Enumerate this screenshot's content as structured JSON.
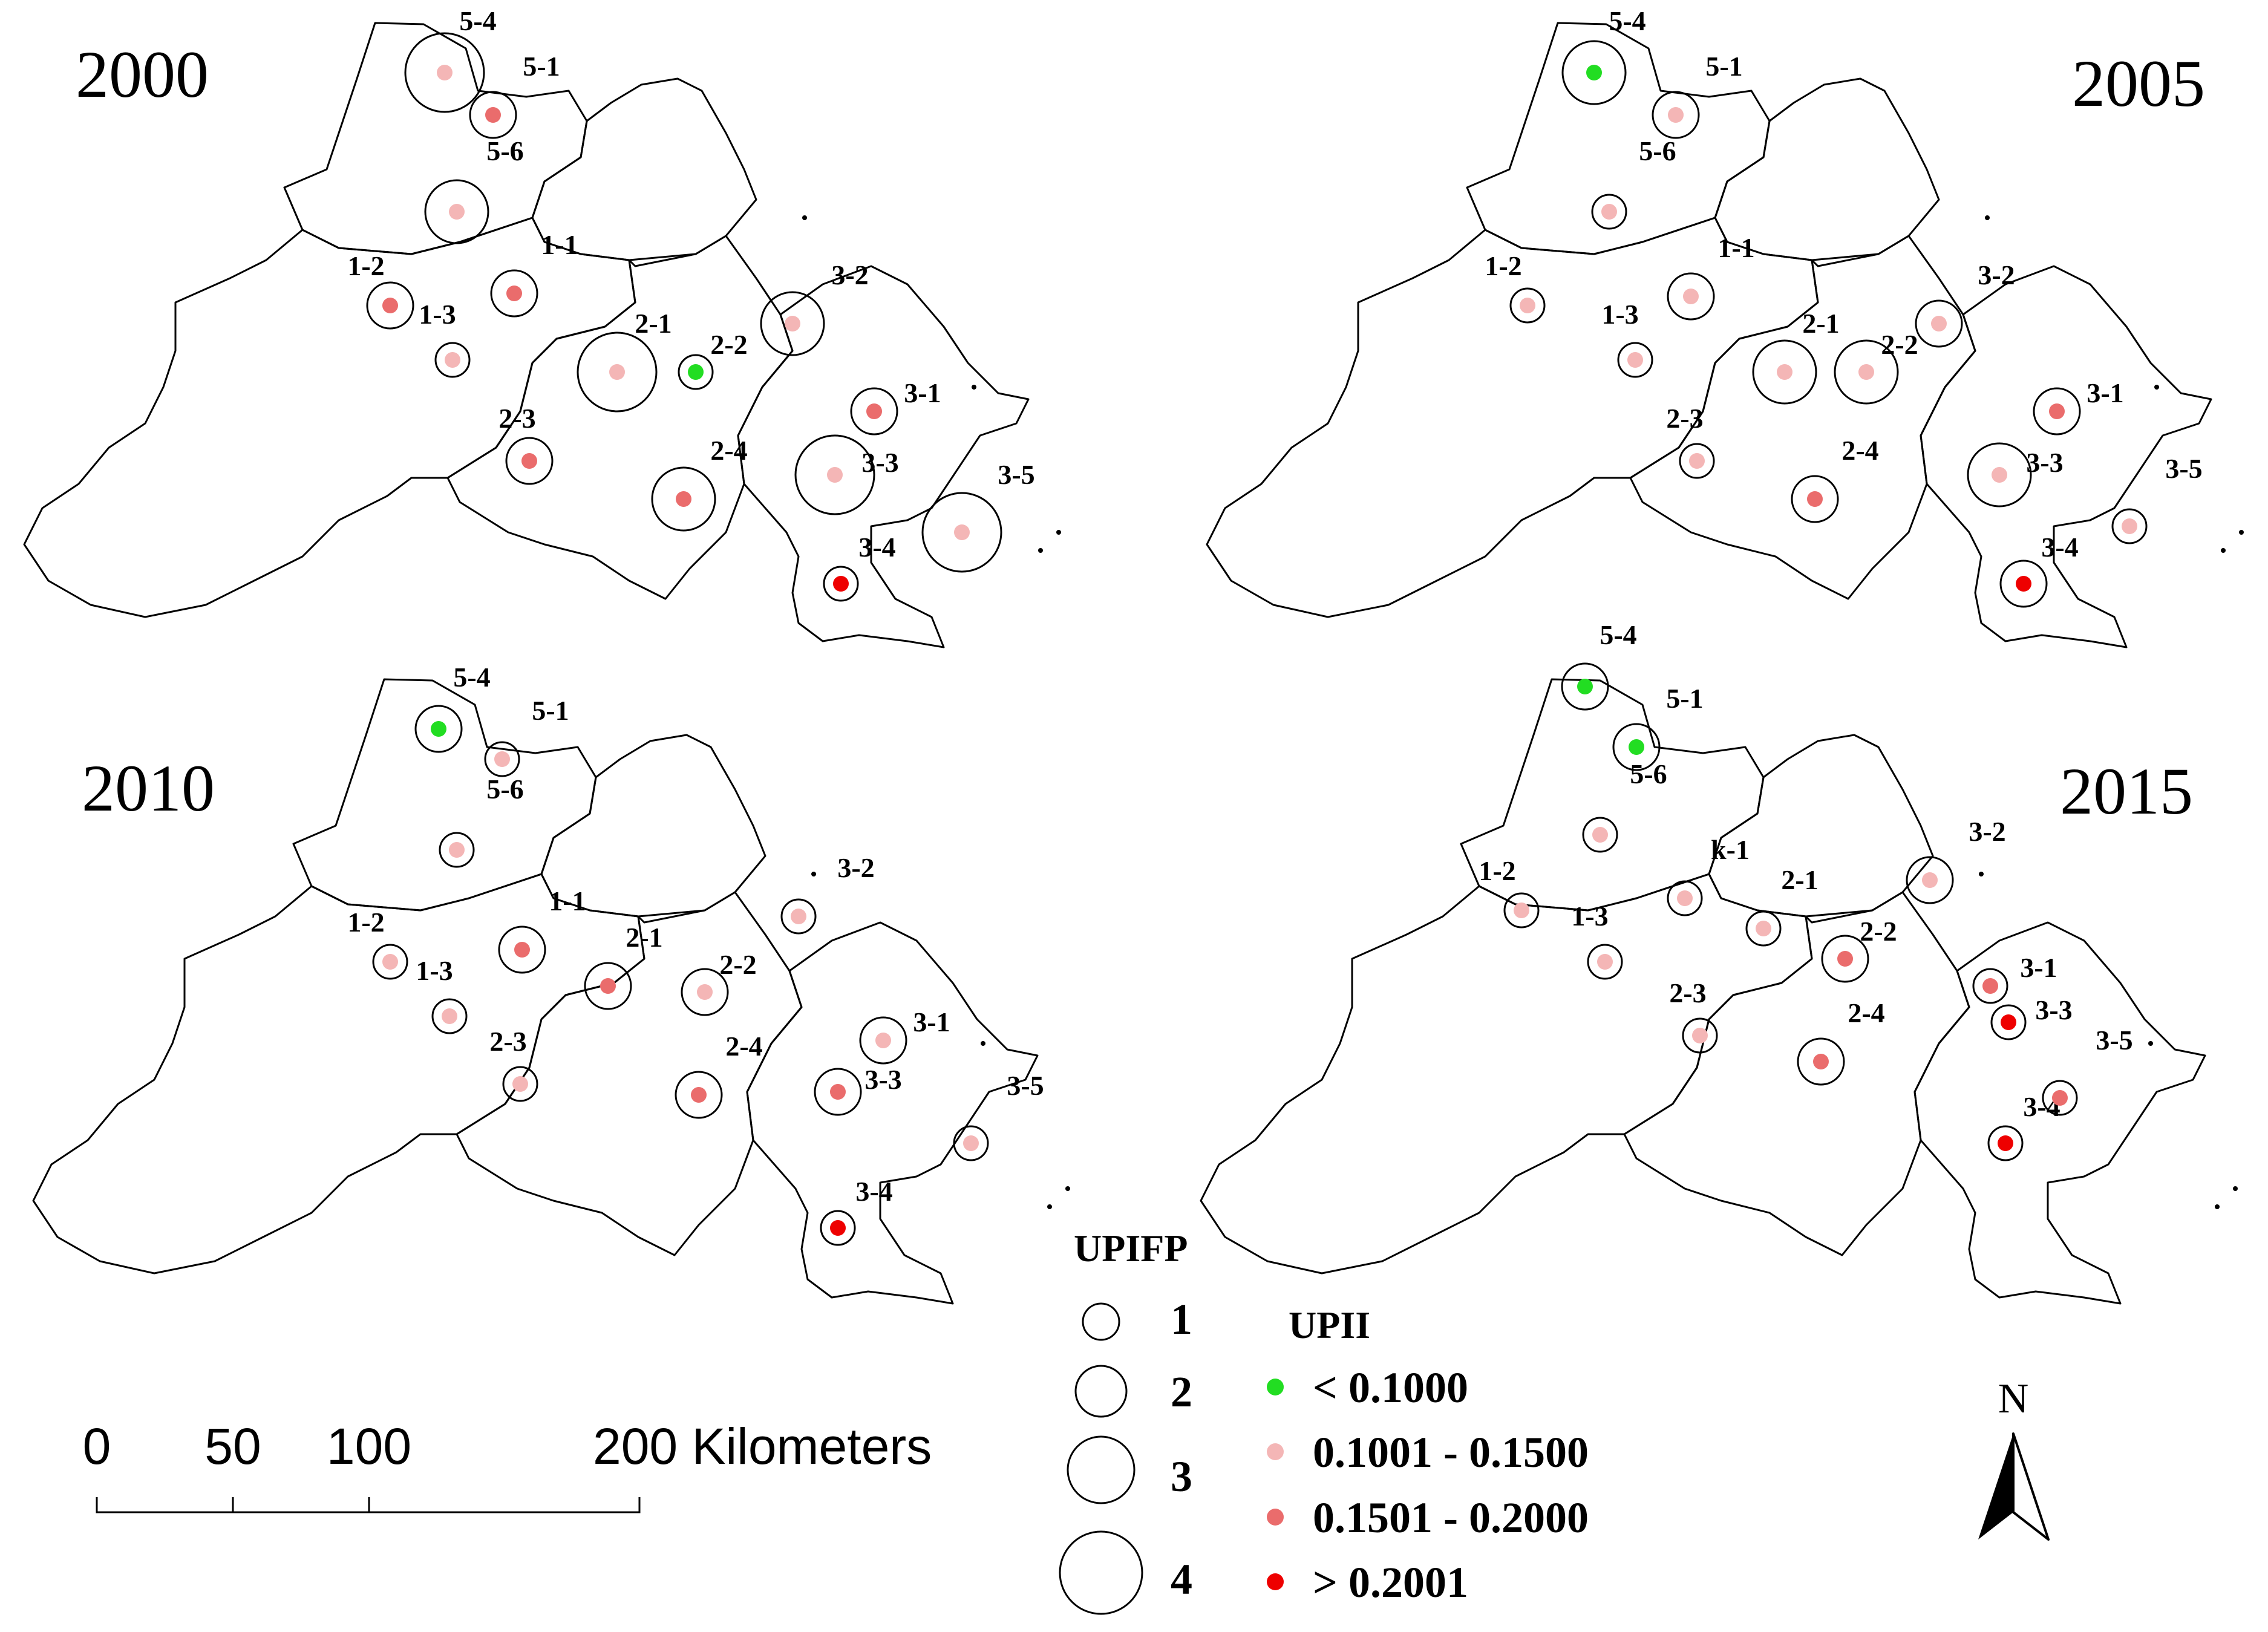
{
  "colors": {
    "lt_0_1000": "#22dd22",
    "r_0_1001_0_1500": "#f4b6b6",
    "r_0_1501_0_2000": "#ea6c6c",
    "gt_0_2001": "#ee0000"
  },
  "panels": [
    {
      "year": "2000",
      "sites": [
        {
          "label": "5-4",
          "upifp": 4,
          "upii": "r_0_1001_0_1500"
        },
        {
          "label": "5-1",
          "upifp": 2,
          "upii": "r_0_1501_0_2000"
        },
        {
          "label": "5-6",
          "upifp": 3,
          "upii": "r_0_1001_0_1500"
        },
        {
          "label": "1-1",
          "upifp": 2,
          "upii": "r_0_1501_0_2000"
        },
        {
          "label": "1-2",
          "upifp": 2,
          "upii": "r_0_1501_0_2000"
        },
        {
          "label": "1-3",
          "upifp": 1,
          "upii": "r_0_1001_0_1500"
        },
        {
          "label": "2-1",
          "upifp": 4,
          "upii": "r_0_1001_0_1500"
        },
        {
          "label": "2-2",
          "upifp": 1,
          "upii": "lt_0_1000"
        },
        {
          "label": "2-3",
          "upifp": 2,
          "upii": "r_0_1501_0_2000"
        },
        {
          "label": "2-4",
          "upifp": 3,
          "upii": "r_0_1501_0_2000"
        },
        {
          "label": "3-1",
          "upifp": 2,
          "upii": "r_0_1501_0_2000"
        },
        {
          "label": "3-2",
          "upifp": 3,
          "upii": "r_0_1001_0_1500"
        },
        {
          "label": "3-3",
          "upifp": 4,
          "upii": "r_0_1001_0_1500"
        },
        {
          "label": "3-4",
          "upifp": 1,
          "upii": "gt_0_2001"
        },
        {
          "label": "3-5",
          "upifp": 4,
          "upii": "r_0_1001_0_1500"
        }
      ]
    },
    {
      "year": "2005",
      "sites": [
        {
          "label": "5-4",
          "upifp": 3,
          "upii": "lt_0_1000"
        },
        {
          "label": "5-1",
          "upifp": 2,
          "upii": "r_0_1001_0_1500"
        },
        {
          "label": "5-6",
          "upifp": 1,
          "upii": "r_0_1001_0_1500"
        },
        {
          "label": "1-1",
          "upifp": 2,
          "upii": "r_0_1001_0_1500"
        },
        {
          "label": "1-2",
          "upifp": 1,
          "upii": "r_0_1001_0_1500"
        },
        {
          "label": "1-3",
          "upifp": 1,
          "upii": "r_0_1001_0_1500"
        },
        {
          "label": "2-1",
          "upifp": 3,
          "upii": "r_0_1001_0_1500"
        },
        {
          "label": "2-2",
          "upifp": 3,
          "upii": "r_0_1001_0_1500"
        },
        {
          "label": "2-3",
          "upifp": 1,
          "upii": "r_0_1001_0_1500"
        },
        {
          "label": "2-4",
          "upifp": 2,
          "upii": "r_0_1501_0_2000"
        },
        {
          "label": "3-1",
          "upifp": 2,
          "upii": "r_0_1501_0_2000"
        },
        {
          "label": "3-2",
          "upifp": 2,
          "upii": "r_0_1001_0_1500"
        },
        {
          "label": "3-3",
          "upifp": 3,
          "upii": "r_0_1001_0_1500"
        },
        {
          "label": "3-4",
          "upifp": 2,
          "upii": "gt_0_2001"
        },
        {
          "label": "3-5",
          "upifp": 1,
          "upii": "r_0_1001_0_1500"
        }
      ]
    },
    {
      "year": "2010",
      "sites": [
        {
          "label": "5-4",
          "upifp": 2,
          "upii": "lt_0_1000"
        },
        {
          "label": "5-1",
          "upifp": 1,
          "upii": "r_0_1001_0_1500"
        },
        {
          "label": "5-6",
          "upifp": 1,
          "upii": "r_0_1001_0_1500"
        },
        {
          "label": "1-1",
          "upifp": 2,
          "upii": "r_0_1501_0_2000"
        },
        {
          "label": "1-2",
          "upifp": 1,
          "upii": "r_0_1001_0_1500"
        },
        {
          "label": "1-3",
          "upifp": 1,
          "upii": "r_0_1001_0_1500"
        },
        {
          "label": "2-1",
          "upifp": 2,
          "upii": "r_0_1501_0_2000"
        },
        {
          "label": "2-2",
          "upifp": 2,
          "upii": "r_0_1001_0_1500"
        },
        {
          "label": "2-3",
          "upifp": 1,
          "upii": "r_0_1001_0_1500"
        },
        {
          "label": "2-4",
          "upifp": 2,
          "upii": "r_0_1501_0_2000"
        },
        {
          "label": "3-1",
          "upifp": 2,
          "upii": "r_0_1001_0_1500"
        },
        {
          "label": "3-2",
          "upifp": 1,
          "upii": "r_0_1001_0_1500"
        },
        {
          "label": "3-3",
          "upifp": 2,
          "upii": "r_0_1501_0_2000"
        },
        {
          "label": "3-4",
          "upifp": 1,
          "upii": "gt_0_2001"
        },
        {
          "label": "3-5",
          "upifp": 1,
          "upii": "r_0_1001_0_1500"
        }
      ]
    },
    {
      "year": "2015",
      "sites": [
        {
          "label": "5-4",
          "upifp": 2,
          "upii": "lt_0_1000"
        },
        {
          "label": "5-1",
          "upifp": 2,
          "upii": "lt_0_1000"
        },
        {
          "label": "5-6",
          "upifp": 1,
          "upii": "r_0_1001_0_1500"
        },
        {
          "label": "k-1",
          "upifp": 1,
          "upii": "r_0_1001_0_1500"
        },
        {
          "label": "1-2",
          "upifp": 1,
          "upii": "r_0_1001_0_1500"
        },
        {
          "label": "1-3",
          "upifp": 1,
          "upii": "r_0_1001_0_1500"
        },
        {
          "label": "2-1",
          "upifp": 1,
          "upii": "r_0_1001_0_1500"
        },
        {
          "label": "2-2",
          "upifp": 2,
          "upii": "r_0_1501_0_2000"
        },
        {
          "label": "2-3",
          "upifp": 1,
          "upii": "r_0_1001_0_1500"
        },
        {
          "label": "2-4",
          "upifp": 2,
          "upii": "r_0_1501_0_2000"
        },
        {
          "label": "3-1",
          "upifp": 1,
          "upii": "r_0_1501_0_2000"
        },
        {
          "label": "3-2",
          "upifp": 2,
          "upii": "r_0_1001_0_1500"
        },
        {
          "label": "3-3",
          "upifp": 1,
          "upii": "gt_0_2001"
        },
        {
          "label": "3-4",
          "upifp": 1,
          "upii": "gt_0_2001"
        },
        {
          "label": "3-5",
          "upifp": 1,
          "upii": "r_0_1501_0_2000"
        }
      ]
    }
  ],
  "legend": {
    "upifp_title": "UPIFP",
    "upifp_items": [
      "1",
      "2",
      "3",
      "4"
    ],
    "upii_title": "UPII",
    "upii_items": [
      {
        "text": "< 0.1000",
        "color_key": "lt_0_1000"
      },
      {
        "text": "0.1001 - 0.1500",
        "color_key": "r_0_1001_0_1500"
      },
      {
        "text": "0.1501 - 0.2000",
        "color_key": "r_0_1501_0_2000"
      },
      {
        "text": "> 0.2001",
        "color_key": "gt_0_2001"
      }
    ]
  },
  "scale_bar": {
    "ticks": [
      "0",
      "50",
      "100",
      "200 Kilometers"
    ]
  },
  "north_arrow": {
    "label": "N"
  }
}
